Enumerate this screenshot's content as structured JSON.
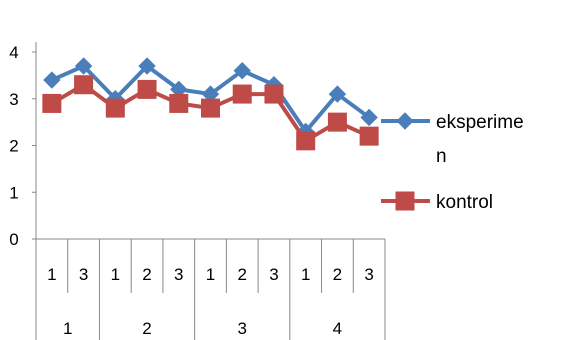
{
  "chart_data": {
    "type": "line",
    "ylim": [
      0,
      4
    ],
    "yticks": [
      "0",
      "1",
      "2",
      "3",
      "4"
    ],
    "grid": false,
    "legend_position": "right",
    "x_levels": {
      "inner": [
        "1",
        "3",
        "1",
        "2",
        "3",
        "1",
        "2",
        "3",
        "1",
        "2",
        "3"
      ],
      "groups": [
        {
          "label": "1",
          "span": 2
        },
        {
          "label": "2",
          "span": 3
        },
        {
          "label": "3",
          "span": 3
        },
        {
          "label": "4",
          "span": 3
        }
      ]
    },
    "series": [
      {
        "name": "eksperimen",
        "color": "#4a7ebb",
        "marker": "diamond",
        "values": [
          3.4,
          3.7,
          3.0,
          3.7,
          3.2,
          3.1,
          3.6,
          3.3,
          2.3,
          3.1,
          2.6
        ]
      },
      {
        "name": "kontrol",
        "color": "#be4b48",
        "marker": "square",
        "values": [
          2.9,
          3.3,
          2.8,
          3.2,
          2.9,
          2.8,
          3.1,
          3.1,
          2.1,
          2.5,
          2.2
        ]
      }
    ]
  }
}
